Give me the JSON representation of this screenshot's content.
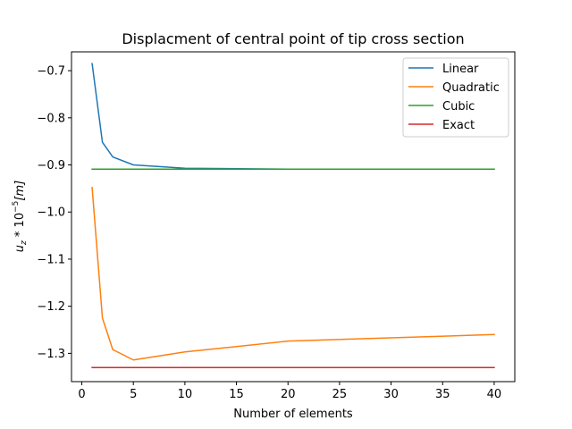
{
  "chart_data": {
    "type": "line",
    "title": "Displacment of central point of tip cross section",
    "xlabel": "Number of elements",
    "ylabel_parts": {
      "base": "u",
      "sub": "z",
      "mult": " * 10",
      "sup": "−5",
      "unit": "[m]"
    },
    "xlim": [
      -1,
      42
    ],
    "ylim": [
      -1.36,
      -0.66
    ],
    "xticks": [
      0,
      5,
      10,
      15,
      20,
      25,
      30,
      35,
      40
    ],
    "yticks": [
      -1.3,
      -1.2,
      -1.1,
      -1.0,
      -0.9,
      -0.8,
      -0.7
    ],
    "ytick_labels": [
      "−1.3",
      "−1.2",
      "−1.1",
      "−1.0",
      "−0.9",
      "−0.8",
      "−0.7"
    ],
    "grid": false,
    "legend_position": "top-right",
    "series": [
      {
        "name": "Linear",
        "color": "#1f77b4",
        "x": [
          1,
          2,
          3,
          5,
          10,
          20,
          40
        ],
        "y": [
          -0.685,
          -0.852,
          -0.883,
          -0.9,
          -0.907,
          -0.909,
          -0.909
        ]
      },
      {
        "name": "Quadratic",
        "color": "#ff7f0e",
        "x": [
          1,
          2,
          3,
          5,
          10,
          20,
          40
        ],
        "y": [
          -0.948,
          -1.225,
          -1.292,
          -1.314,
          -1.297,
          -1.274,
          -1.26
        ]
      },
      {
        "name": "Cubic",
        "color": "#2ca02c",
        "x": [
          1,
          2,
          3,
          5,
          10,
          20,
          40
        ],
        "y": [
          -0.909,
          -0.909,
          -0.909,
          -0.909,
          -0.909,
          -0.909,
          -0.909
        ]
      },
      {
        "name": "Exact",
        "color": "#d62728",
        "x": [
          1,
          40
        ],
        "y": [
          -1.33,
          -1.33
        ]
      }
    ]
  }
}
